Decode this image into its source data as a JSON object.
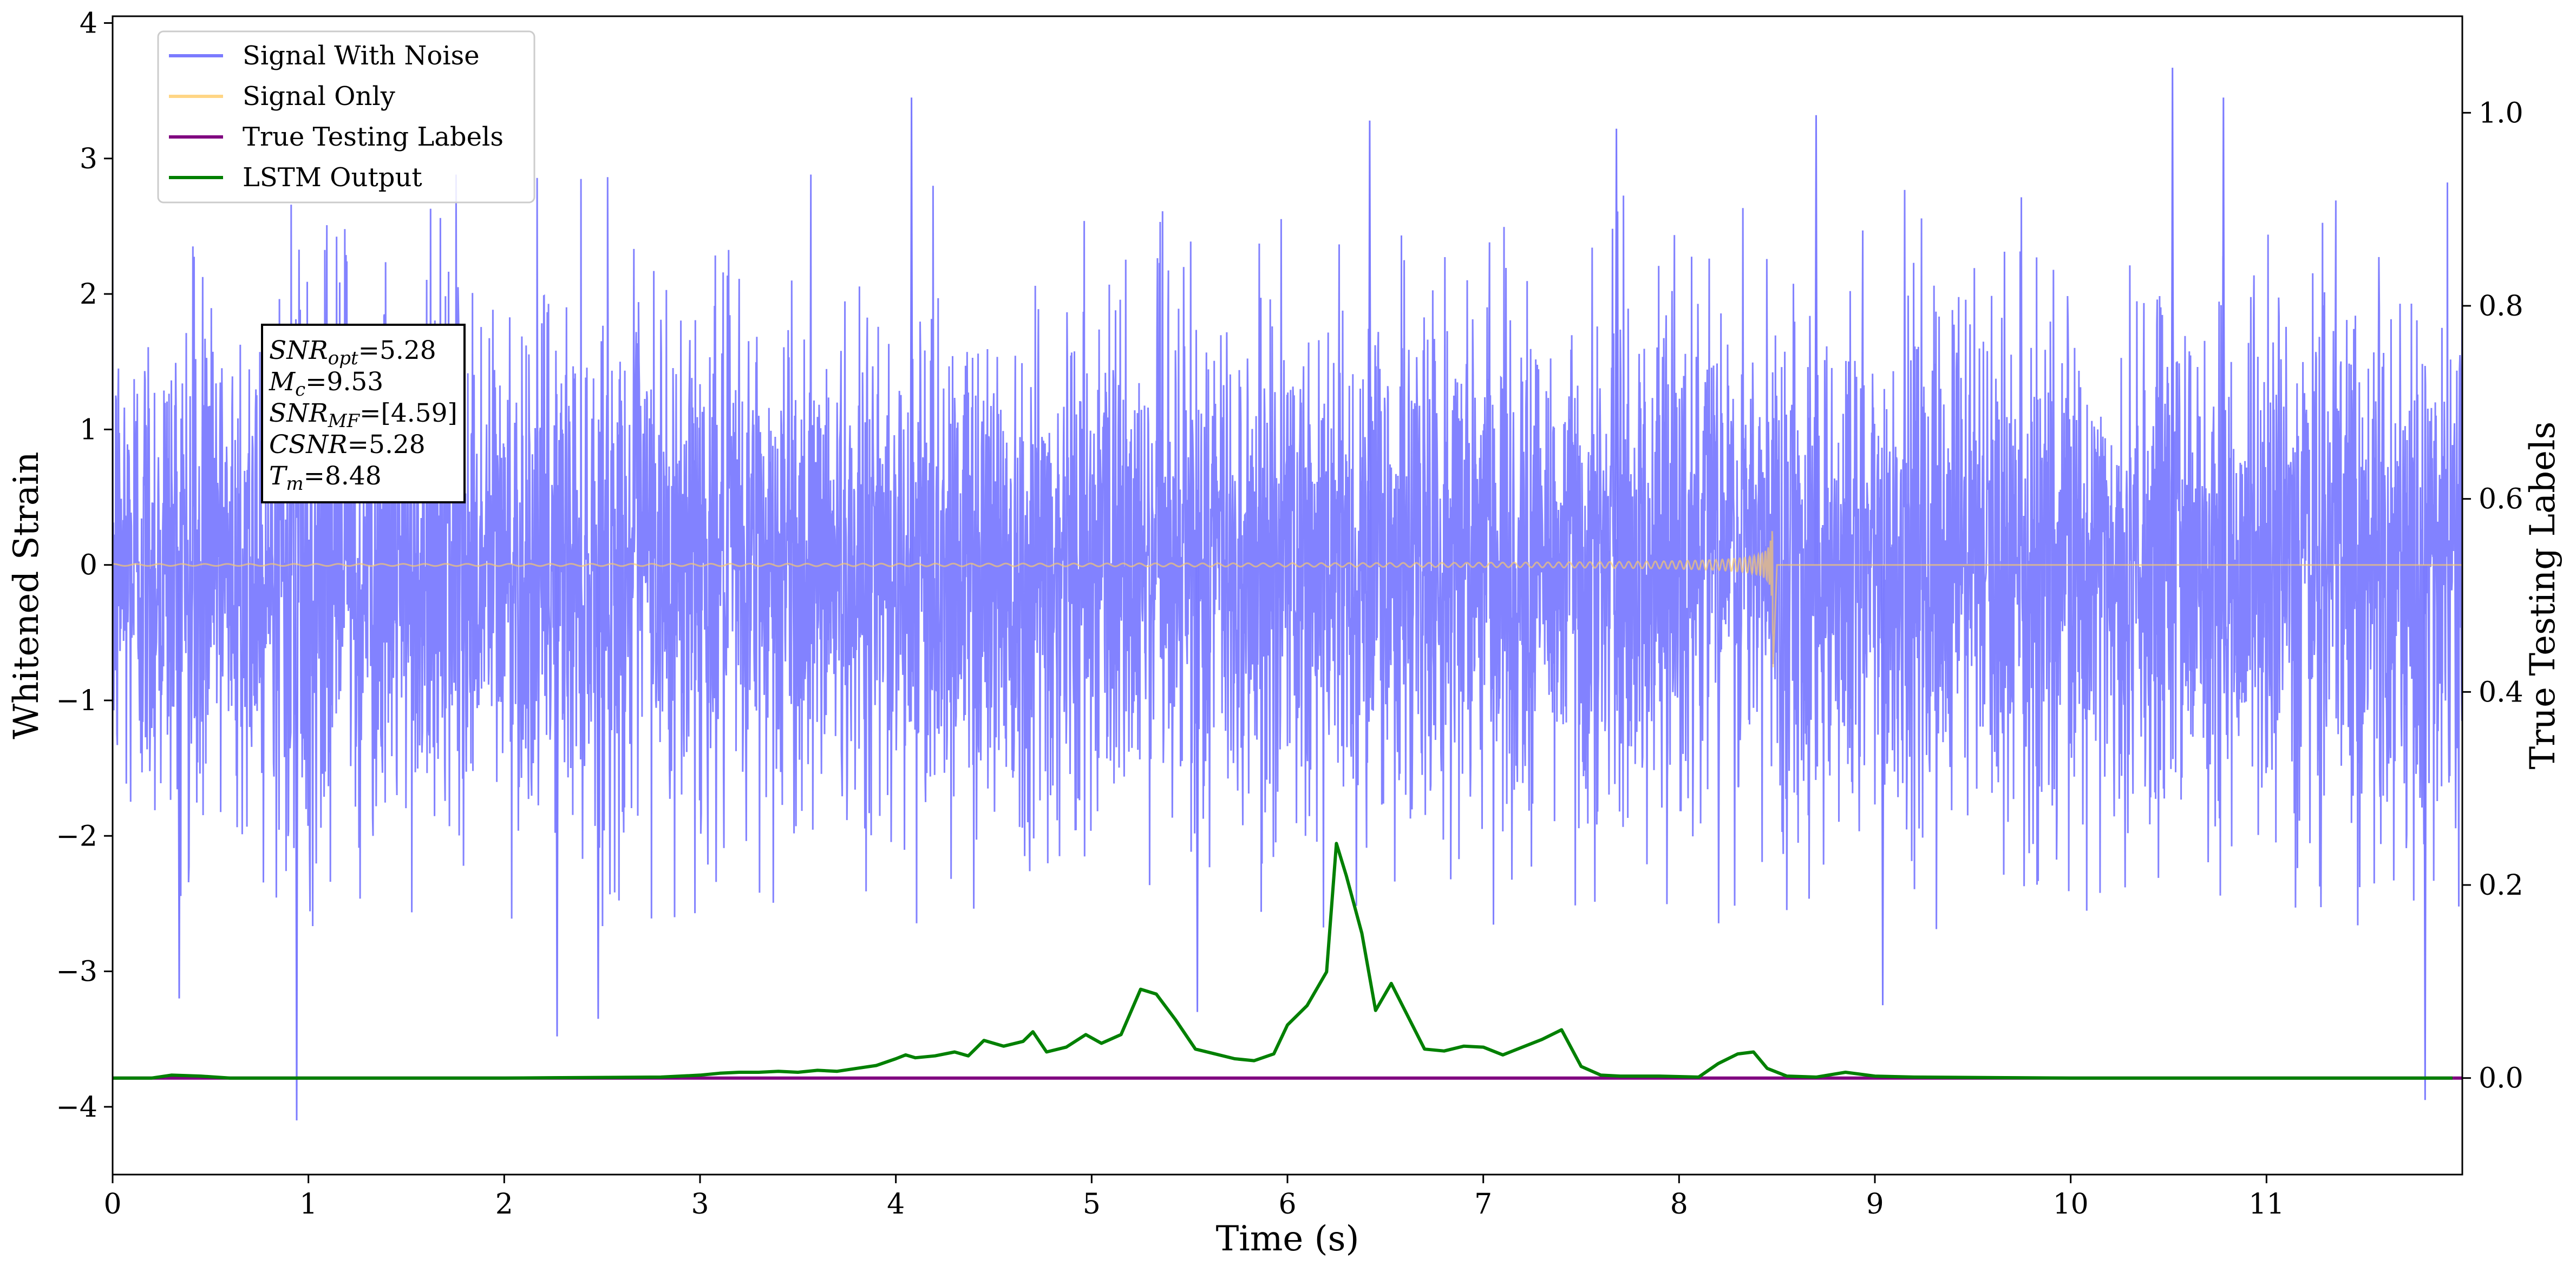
{
  "chart_data": {
    "type": "line",
    "xlabel": "Time (s)",
    "ylabel_left": "Whitened Strain",
    "ylabel_right": "True Testing Labels",
    "xlim": [
      0,
      12
    ],
    "ylim_left": [
      -4.5,
      4.05
    ],
    "ylim_right": [
      -0.1,
      1.1
    ],
    "x_ticks": [
      0,
      1,
      2,
      3,
      4,
      5,
      6,
      7,
      8,
      9,
      10,
      11
    ],
    "y_ticks_left": [
      -4,
      -3,
      -2,
      -1,
      0,
      1,
      2,
      3,
      4
    ],
    "y_ticks_left_labels": [
      "−4",
      "−3",
      "−2",
      "−1",
      "0",
      "1",
      "2",
      "3",
      "4"
    ],
    "y_ticks_right": [
      0.0,
      0.2,
      0.4,
      0.6,
      0.8,
      1.0
    ],
    "y_ticks_right_labels": [
      "0.0",
      "0.2",
      "0.4",
      "0.6",
      "0.8",
      "1.0"
    ],
    "grid": false,
    "legend_position": "top-left",
    "annotation": {
      "lines": [
        {
          "base": "SNR",
          "sub": "opt",
          "value": "=5.28"
        },
        {
          "base": "M",
          "sub": "c",
          "value": "=9.53"
        },
        {
          "base": "SNR",
          "sub": "MF",
          "value": "=[4.59]"
        },
        {
          "base": "CSNR",
          "sub": "",
          "value": "=5.28"
        },
        {
          "base": "T",
          "sub": "m",
          "value": "=8.48"
        }
      ]
    },
    "series": [
      {
        "name": "Signal With Noise",
        "color": "#7b7bff",
        "axis": "left",
        "style": "noise",
        "amplitude_envelope": [
          -2.7,
          2.9
        ],
        "spikes": [
          {
            "x": 0.94,
            "y": -4.1
          },
          {
            "x": 10.52,
            "y": 3.67
          },
          {
            "x": 11.81,
            "y": -3.95
          },
          {
            "x": 4.08,
            "y": 3.45
          },
          {
            "x": 2.27,
            "y": -3.48
          },
          {
            "x": 6.42,
            "y": 3.28
          },
          {
            "x": 8.7,
            "y": 3.32
          },
          {
            "x": 0.34,
            "y": -3.2
          },
          {
            "x": 2.48,
            "y": -3.35
          },
          {
            "x": 5.54,
            "y": -3.3
          },
          {
            "x": 7.68,
            "y": 3.22
          },
          {
            "x": 9.04,
            "y": -3.25
          },
          {
            "x": 10.78,
            "y": 3.45
          },
          {
            "x": 12.0,
            "y": 2.26
          }
        ]
      },
      {
        "name": "Signal Only",
        "color": "#ffcc66",
        "axis": "left",
        "style": "chirp",
        "start": 0.0,
        "merger_time": 8.48,
        "peak_amplitude": 0.72
      },
      {
        "name": "True Testing  Labels",
        "color": "#800080",
        "axis": "right",
        "x": [
          0,
          12
        ],
        "values": [
          0.0,
          0.0
        ]
      },
      {
        "name": "LSTM Output",
        "color": "#008000",
        "axis": "right",
        "x": [
          0,
          0.2,
          0.3,
          0.45,
          0.6,
          1,
          2,
          2.8,
          3.0,
          3.1,
          3.2,
          3.3,
          3.4,
          3.5,
          3.6,
          3.7,
          3.8,
          3.9,
          4.0,
          4.05,
          4.1,
          4.2,
          4.3,
          4.37,
          4.45,
          4.55,
          4.65,
          4.7,
          4.77,
          4.87,
          4.97,
          5.05,
          5.15,
          5.25,
          5.33,
          5.43,
          5.53,
          5.63,
          5.73,
          5.83,
          5.93,
          6.0,
          6.1,
          6.2,
          6.25,
          6.3,
          6.38,
          6.45,
          6.53,
          6.6,
          6.7,
          6.8,
          6.9,
          7.0,
          7.1,
          7.2,
          7.3,
          7.4,
          7.5,
          7.6,
          7.7,
          7.9,
          8.1,
          8.2,
          8.3,
          8.38,
          8.45,
          8.55,
          8.7,
          8.85,
          9.0,
          9.2,
          10,
          11,
          11.95
        ],
        "values": [
          0.0,
          0.0,
          0.003,
          0.002,
          0.0,
          0.0,
          0.0,
          0.001,
          0.003,
          0.005,
          0.006,
          0.006,
          0.007,
          0.006,
          0.008,
          0.007,
          0.01,
          0.013,
          0.02,
          0.024,
          0.021,
          0.023,
          0.027,
          0.023,
          0.039,
          0.033,
          0.038,
          0.048,
          0.027,
          0.032,
          0.045,
          0.036,
          0.045,
          0.092,
          0.087,
          0.06,
          0.03,
          0.025,
          0.02,
          0.018,
          0.025,
          0.055,
          0.075,
          0.11,
          0.243,
          0.21,
          0.15,
          0.07,
          0.098,
          0.07,
          0.03,
          0.028,
          0.033,
          0.032,
          0.024,
          0.032,
          0.04,
          0.05,
          0.012,
          0.003,
          0.002,
          0.002,
          0.001,
          0.015,
          0.025,
          0.027,
          0.01,
          0.002,
          0.001,
          0.006,
          0.002,
          0.001,
          0.0,
          0.0,
          0.0
        ]
      }
    ]
  }
}
